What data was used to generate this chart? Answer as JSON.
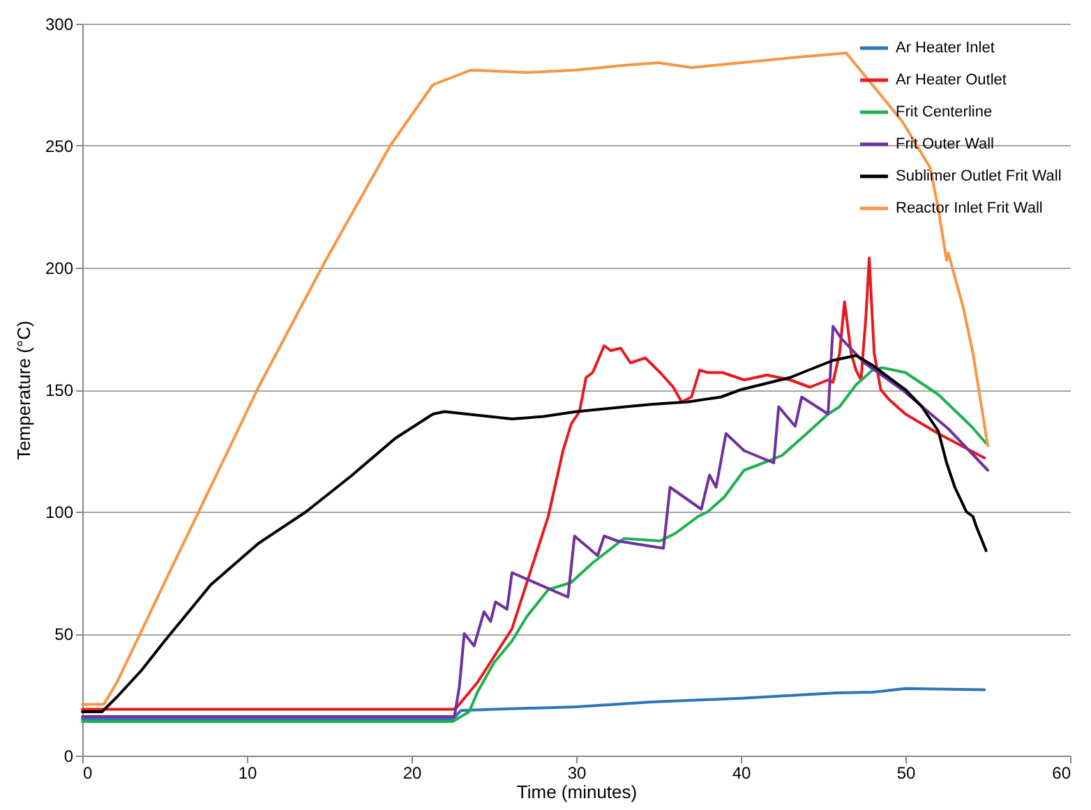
{
  "chart_data": {
    "type": "line",
    "xlabel": "Time (minutes)",
    "ylabel": "Temperature (°C)",
    "xlim": [
      0,
      60
    ],
    "xticks": [
      0,
      10,
      20,
      30,
      40,
      50,
      60
    ],
    "ylim": [
      0,
      300
    ],
    "yticks": [
      0,
      50,
      100,
      150,
      200,
      250,
      300
    ],
    "grid": "y",
    "legend": "top right",
    "line_style": "solid",
    "marker": "none",
    "series": [
      {
        "name": "Ar Heater Inlet",
        "color": "#2e75b6",
        "x": [
          0,
          22.5,
          23,
          25,
          30,
          34.6,
          40,
          45.8,
          48,
          50,
          54.8
        ],
        "values": [
          15,
          15,
          18.5,
          19,
          20,
          22,
          23.5,
          25.7,
          26,
          27.5,
          27
        ]
      },
      {
        "name": "Ar Heater Outlet",
        "color": "#e8191e",
        "x": [
          0,
          1,
          22.5,
          22.7,
          24,
          26.1,
          28.3,
          29.2,
          29.7,
          30.2,
          30.6,
          31,
          31.7,
          32.1,
          32.7,
          33.3,
          34.2,
          35.1,
          35.9,
          36.4,
          37,
          37.5,
          38,
          38.9,
          40.2,
          41.6,
          43,
          44.2,
          45.3,
          45.6,
          46,
          46.3,
          46.7,
          47,
          47.3,
          47.6,
          47.8,
          48.1,
          48.5,
          49,
          50,
          52,
          54.8
        ],
        "values": [
          19,
          19,
          19,
          19.4,
          30,
          52,
          98,
          125,
          136,
          141,
          155,
          157,
          168,
          166,
          167,
          161,
          163,
          157,
          151,
          145,
          147,
          158,
          157,
          157,
          154,
          156,
          154,
          151,
          154,
          153,
          165,
          186,
          165,
          158,
          154,
          180,
          204,
          165,
          150,
          146,
          140,
          132,
          122
        ]
      },
      {
        "name": "Frit Centerline",
        "color": "#20b050",
        "x": [
          0,
          22.5,
          23.5,
          24,
          25,
          26.1,
          27,
          28.3,
          29.7,
          31,
          32.9,
          35.1,
          36,
          37.4,
          38,
          39,
          40.2,
          41,
          42.5,
          44,
          45.3,
          46,
          47,
          48,
          48.6,
          50,
          52,
          54,
          54.9
        ],
        "values": [
          14,
          14,
          18,
          26,
          38,
          47,
          57,
          68,
          71,
          79,
          89,
          88,
          91,
          98,
          100,
          106,
          117,
          119,
          123,
          132,
          140,
          143,
          152,
          158,
          159,
          157,
          148,
          135,
          128
        ]
      },
      {
        "name": "Frit Outer Wall",
        "color": "#7030a0",
        "x": [
          0,
          22.6,
          22.9,
          23.2,
          23.8,
          24.4,
          24.8,
          25.1,
          25.8,
          26.1,
          29.5,
          29.9,
          31.3,
          31.7,
          32.5,
          35.3,
          35.7,
          37.6,
          38.1,
          38.5,
          39.1,
          40.2,
          42,
          42.3,
          43.3,
          43.7,
          45.3,
          45.6,
          46.1,
          47.5,
          49.8,
          52.6,
          55
        ],
        "values": [
          16,
          16,
          28,
          50,
          45,
          59,
          55,
          63,
          60,
          75,
          65,
          90,
          82,
          90,
          88,
          85,
          110,
          101,
          115,
          110,
          132,
          125,
          120,
          143,
          135,
          147,
          140,
          176,
          171,
          161,
          150,
          134,
          117
        ]
      },
      {
        "name": "Sublimer Outlet Frit Wall",
        "color": "#000000",
        "x": [
          0,
          1.2,
          2.1,
          3.6,
          5,
          7.8,
          10.7,
          13.6,
          16.4,
          19,
          21.3,
          22,
          26.1,
          28,
          30,
          33,
          34.6,
          36.8,
          38.8,
          40,
          43,
          45.6,
          47,
          48,
          49,
          50,
          51,
          52,
          52.5,
          53,
          53.7,
          54.1,
          54.3,
          54.9
        ],
        "values": [
          18,
          18,
          24,
          35,
          47,
          70,
          87,
          100,
          115,
          130,
          140,
          141,
          138,
          139,
          141,
          143,
          144,
          145,
          147,
          150,
          155,
          162,
          164,
          160,
          155,
          150,
          143,
          133,
          120,
          110,
          100,
          98,
          94,
          84
        ]
      },
      {
        "name": "Reactor Inlet Frit Wall",
        "color": "#f79646",
        "x": [
          0,
          1.3,
          2.1,
          5,
          8,
          10.7,
          14.7,
          18.7,
          21.3,
          23.6,
          27,
          30,
          33,
          35,
          37,
          40,
          43,
          46.4,
          47.5,
          49.8,
          51.5,
          52,
          52.5,
          52.6,
          53.5,
          54.1,
          55
        ],
        "values": [
          21,
          21,
          30,
          71,
          113,
          151,
          202,
          250,
          275,
          281,
          280,
          281,
          283,
          284,
          282,
          284,
          286,
          288,
          279,
          260,
          241,
          224,
          203,
          206,
          184,
          165,
          127
        ]
      }
    ]
  }
}
